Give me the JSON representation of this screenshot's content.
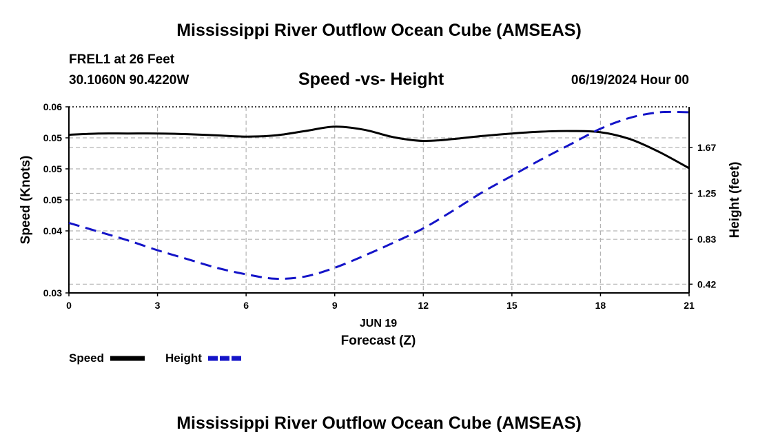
{
  "header": {
    "title_top": "Mississippi River Outflow Ocean Cube (AMSEAS)",
    "station": "FREL1 at 26 Feet",
    "coords": "30.1060N  90.4220W",
    "subtitle": "Speed -vs- Height",
    "datetime": "06/19/2024 Hour 00",
    "title_bottom": "Mississippi River Outflow Ocean Cube (AMSEAS)"
  },
  "chart_data": {
    "type": "line",
    "title": "Speed -vs- Height",
    "xlabel": "Forecast (Z)",
    "xsublabel": "JUN 19",
    "ylabel_left": "Speed (Knots)",
    "ylabel_right": "Height (feet)",
    "xlim": [
      0,
      21
    ],
    "x_ticks": [
      0,
      3,
      6,
      9,
      12,
      15,
      18,
      21
    ],
    "x_tick_labels": [
      "0",
      "3",
      "6",
      "9",
      "12",
      "15",
      "18",
      "21"
    ],
    "ylim_left": [
      0.03,
      0.06
    ],
    "y_left_ticks": [
      0.03,
      0.04,
      0.045,
      0.05,
      0.055,
      0.06
    ],
    "y_left_tick_labels": [
      "0.03",
      "0.04",
      "0.05",
      "0.05",
      "0.05",
      "0.06"
    ],
    "ylim_right": [
      0.34,
      2.04
    ],
    "y_right_ticks": [
      0.42,
      0.83,
      1.25,
      1.67
    ],
    "y_right_tick_labels": [
      "0.42",
      "0.83",
      "1.25",
      "1.67"
    ],
    "grid": true,
    "legend": "bottom-left",
    "series": [
      {
        "name": "Speed",
        "axis": "left",
        "color": "#000000",
        "style": "solid",
        "x": [
          0,
          1,
          2,
          3,
          4,
          5,
          6,
          7,
          8,
          9,
          10,
          11,
          12,
          13,
          14,
          15,
          16,
          17,
          18,
          19,
          20,
          21
        ],
        "values": [
          0.0555,
          0.0557,
          0.0557,
          0.0557,
          0.0556,
          0.0554,
          0.0552,
          0.0554,
          0.0561,
          0.0568,
          0.0563,
          0.0551,
          0.0545,
          0.0548,
          0.0553,
          0.0557,
          0.056,
          0.0561,
          0.0559,
          0.0548,
          0.0527,
          0.0501
        ]
      },
      {
        "name": "Height",
        "axis": "right",
        "color": "#1414c8",
        "style": "dashed",
        "x": [
          0,
          1,
          2,
          3,
          4,
          5,
          6,
          7,
          8,
          9,
          10,
          11,
          12,
          13,
          14,
          15,
          16,
          17,
          18,
          19,
          20,
          21
        ],
        "values": [
          0.98,
          0.9,
          0.82,
          0.73,
          0.65,
          0.57,
          0.51,
          0.47,
          0.49,
          0.57,
          0.68,
          0.8,
          0.93,
          1.09,
          1.26,
          1.41,
          1.56,
          1.7,
          1.84,
          1.94,
          1.99,
          1.99
        ]
      }
    ]
  }
}
